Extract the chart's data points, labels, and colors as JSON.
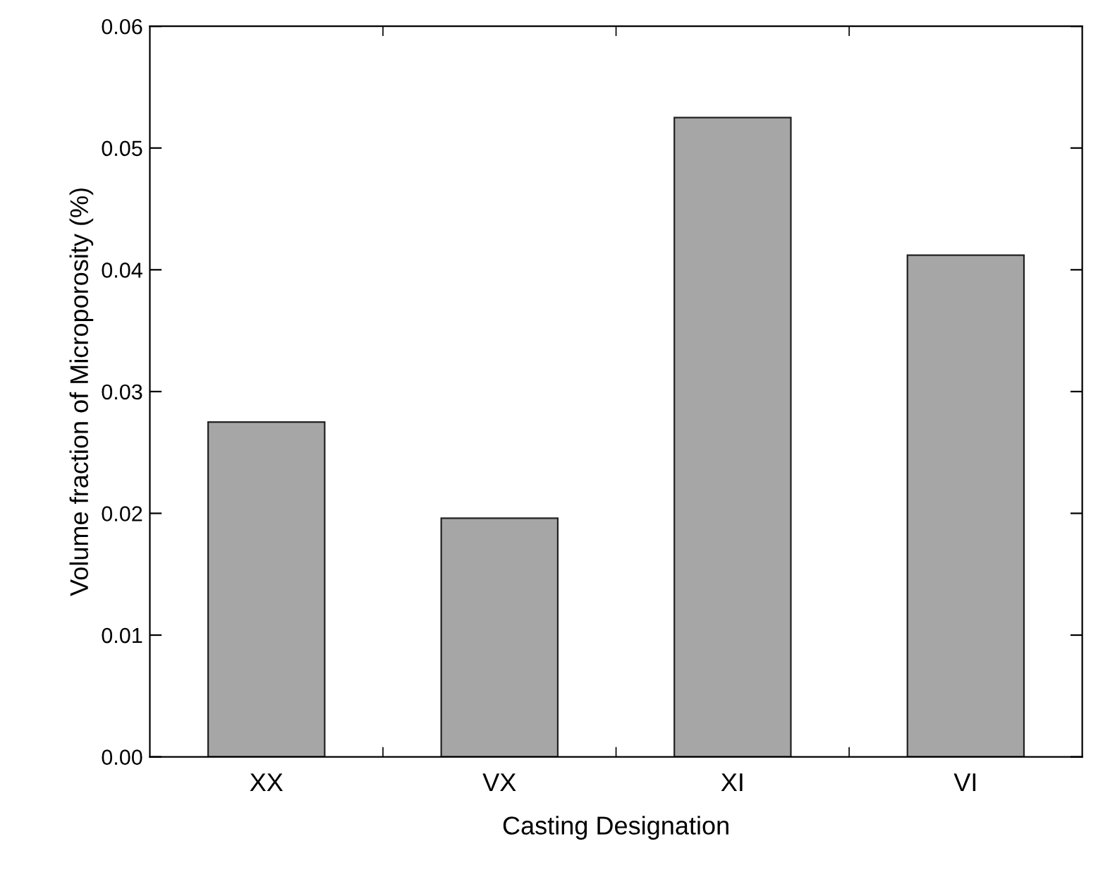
{
  "chart_data": {
    "type": "bar",
    "xlabel": "Casting Designation",
    "ylabel": "Volume fraction of Microporosity (%)",
    "categories": [
      "XX",
      "VX",
      "XI",
      "VI"
    ],
    "values": [
      0.0275,
      0.0196,
      0.0525,
      0.0412
    ],
    "color": "#a6a6a6",
    "ylim": [
      0,
      0.06
    ],
    "yticks": [
      {
        "value": 0,
        "label": "0.00"
      },
      {
        "value": 0.01,
        "label": "0.01"
      },
      {
        "value": 0.02,
        "label": "0.02"
      },
      {
        "value": 0.03,
        "label": "0.03"
      },
      {
        "value": 0.04,
        "label": "0.04"
      },
      {
        "value": 0.05,
        "label": "0.05"
      },
      {
        "value": 0.06,
        "label": "0.06"
      }
    ],
    "grid": false,
    "legend": false
  }
}
